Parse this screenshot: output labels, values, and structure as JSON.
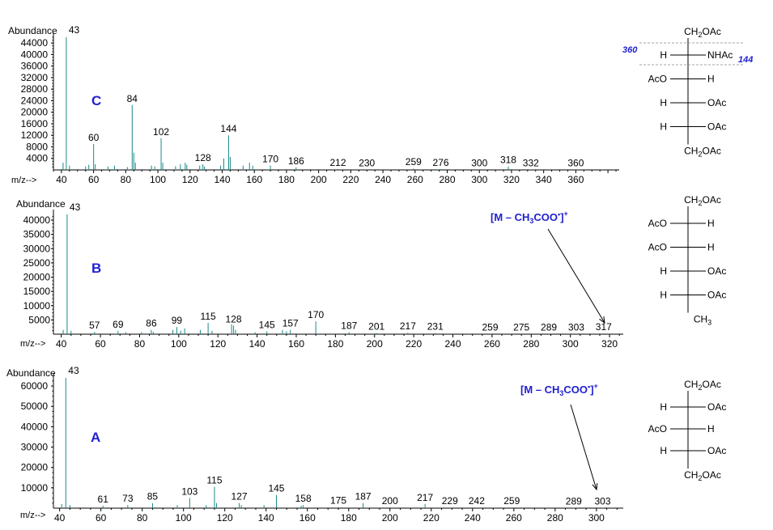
{
  "chart_data": [
    {
      "type": "bar",
      "panel_label": "C",
      "ylabel": "Abundance",
      "xlabel": "m/z-->",
      "xlim": [
        35,
        387
      ],
      "ylim": [
        0,
        46000
      ],
      "xticks": [
        40,
        60,
        80,
        100,
        120,
        140,
        160,
        180,
        200,
        220,
        240,
        260,
        280,
        300,
        320,
        340,
        360
      ],
      "yticks": [
        4000,
        8000,
        12000,
        16000,
        20000,
        24000,
        28000,
        32000,
        36000,
        40000,
        44000
      ],
      "peaks": [
        {
          "mz": 41,
          "val": 2500
        },
        {
          "mz": 43,
          "val": 46000
        },
        {
          "mz": 45,
          "val": 1500
        },
        {
          "mz": 55,
          "val": 1200
        },
        {
          "mz": 57,
          "val": 1800
        },
        {
          "mz": 60,
          "val": 9000,
          "label": "60"
        },
        {
          "mz": 61,
          "val": 2000
        },
        {
          "mz": 69,
          "val": 1200
        },
        {
          "mz": 73,
          "val": 1500
        },
        {
          "mz": 81,
          "val": 1000
        },
        {
          "mz": 84,
          "val": 22500,
          "label": "84"
        },
        {
          "mz": 85,
          "val": 6000
        },
        {
          "mz": 86,
          "val": 2500
        },
        {
          "mz": 96,
          "val": 1500
        },
        {
          "mz": 98,
          "val": 1200
        },
        {
          "mz": 102,
          "val": 11000,
          "label": "102"
        },
        {
          "mz": 103,
          "val": 2500
        },
        {
          "mz": 111,
          "val": 1300
        },
        {
          "mz": 114,
          "val": 2000
        },
        {
          "mz": 117,
          "val": 2500
        },
        {
          "mz": 118,
          "val": 1800
        },
        {
          "mz": 126,
          "val": 1500
        },
        {
          "mz": 128,
          "val": 2000,
          "label": "128"
        },
        {
          "mz": 129,
          "val": 1200
        },
        {
          "mz": 139,
          "val": 1500
        },
        {
          "mz": 141,
          "val": 4000
        },
        {
          "mz": 144,
          "val": 12000,
          "label": "144"
        },
        {
          "mz": 145,
          "val": 4500
        },
        {
          "mz": 153,
          "val": 1500
        },
        {
          "mz": 157,
          "val": 2500
        },
        {
          "mz": 159,
          "val": 1500
        },
        {
          "mz": 170,
          "val": 1500,
          "label": "170"
        },
        {
          "mz": 186,
          "val": 900,
          "label": "186"
        },
        {
          "mz": 212,
          "val": 300,
          "label": "212"
        },
        {
          "mz": 230,
          "val": 200,
          "label": "230"
        },
        {
          "mz": 259,
          "val": 500,
          "label": "259"
        },
        {
          "mz": 276,
          "val": 300,
          "label": "276"
        },
        {
          "mz": 300,
          "val": 200,
          "label": "300"
        },
        {
          "mz": 318,
          "val": 1200,
          "label": "318"
        },
        {
          "mz": 332,
          "val": 200,
          "label": "332"
        },
        {
          "mz": 360,
          "val": 200,
          "label": "360"
        }
      ],
      "top_label": "43"
    },
    {
      "type": "bar",
      "panel_label": "B",
      "ylabel": "Abundance",
      "xlabel": "m/z-->",
      "xlim": [
        36,
        327
      ],
      "ylim": [
        0,
        42000
      ],
      "xticks": [
        40,
        60,
        80,
        100,
        120,
        140,
        160,
        180,
        200,
        220,
        240,
        260,
        280,
        300,
        320
      ],
      "yticks": [
        5000,
        10000,
        15000,
        20000,
        25000,
        30000,
        35000,
        40000
      ],
      "peaks": [
        {
          "mz": 41,
          "val": 1500
        },
        {
          "mz": 43,
          "val": 42000
        },
        {
          "mz": 45,
          "val": 1200
        },
        {
          "mz": 57,
          "val": 800,
          "label": "57"
        },
        {
          "mz": 69,
          "val": 1200,
          "label": "69"
        },
        {
          "mz": 73,
          "val": 700
        },
        {
          "mz": 81,
          "val": 700
        },
        {
          "mz": 86,
          "val": 1500,
          "label": "86"
        },
        {
          "mz": 87,
          "val": 800
        },
        {
          "mz": 97,
          "val": 1500
        },
        {
          "mz": 99,
          "val": 2500,
          "label": "99"
        },
        {
          "mz": 101,
          "val": 1200
        },
        {
          "mz": 103,
          "val": 2000
        },
        {
          "mz": 111,
          "val": 1500
        },
        {
          "mz": 115,
          "val": 4000,
          "label": "115"
        },
        {
          "mz": 117,
          "val": 1200
        },
        {
          "mz": 127,
          "val": 3500
        },
        {
          "mz": 128,
          "val": 3000,
          "label": "128"
        },
        {
          "mz": 129,
          "val": 1500
        },
        {
          "mz": 139,
          "val": 700
        },
        {
          "mz": 145,
          "val": 1000,
          "label": "145"
        },
        {
          "mz": 153,
          "val": 1500
        },
        {
          "mz": 155,
          "val": 1000
        },
        {
          "mz": 157,
          "val": 1500,
          "label": "157"
        },
        {
          "mz": 170,
          "val": 4500,
          "label": "170"
        },
        {
          "mz": 187,
          "val": 700,
          "label": "187"
        },
        {
          "mz": 201,
          "val": 400,
          "label": "201"
        },
        {
          "mz": 217,
          "val": 500,
          "label": "217"
        },
        {
          "mz": 231,
          "val": 400,
          "label": "231"
        },
        {
          "mz": 259,
          "val": 200,
          "label": "259"
        },
        {
          "mz": 275,
          "val": 200,
          "label": "275"
        },
        {
          "mz": 289,
          "val": 200,
          "label": "289"
        },
        {
          "mz": 303,
          "val": 200,
          "label": "303"
        },
        {
          "mz": 317,
          "val": 300,
          "label": "317"
        }
      ],
      "top_label": "43",
      "annotation": {
        "pre": "[M – CH",
        "sub": "3",
        "mid": "COO",
        "sup_dot": "•",
        "post": "]",
        "sup": "+"
      }
    },
    {
      "type": "bar",
      "panel_label": "A",
      "ylabel": "Abundance",
      "xlabel": "m/z-->",
      "xlim": [
        37,
        313
      ],
      "ylim": [
        0,
        64000
      ],
      "xticks": [
        40,
        60,
        80,
        100,
        120,
        140,
        160,
        180,
        200,
        220,
        240,
        260,
        280,
        300
      ],
      "yticks": [
        10000,
        20000,
        30000,
        40000,
        50000,
        60000
      ],
      "peaks": [
        {
          "mz": 41,
          "val": 2000
        },
        {
          "mz": 43,
          "val": 64000
        },
        {
          "mz": 45,
          "val": 1500
        },
        {
          "mz": 61,
          "val": 1200,
          "label": "61"
        },
        {
          "mz": 73,
          "val": 1500,
          "label": "73"
        },
        {
          "mz": 85,
          "val": 2500,
          "label": "85"
        },
        {
          "mz": 97,
          "val": 1500
        },
        {
          "mz": 103,
          "val": 5000,
          "label": "103"
        },
        {
          "mz": 111,
          "val": 1500
        },
        {
          "mz": 115,
          "val": 10500,
          "label": "115"
        },
        {
          "mz": 116,
          "val": 2500
        },
        {
          "mz": 127,
          "val": 2500,
          "label": "127"
        },
        {
          "mz": 128,
          "val": 1500
        },
        {
          "mz": 139,
          "val": 1500
        },
        {
          "mz": 145,
          "val": 6500,
          "label": "145"
        },
        {
          "mz": 157,
          "val": 1200
        },
        {
          "mz": 158,
          "val": 1500,
          "label": "158"
        },
        {
          "mz": 175,
          "val": 500,
          "label": "175"
        },
        {
          "mz": 187,
          "val": 2500,
          "label": "187"
        },
        {
          "mz": 200,
          "val": 400,
          "label": "200"
        },
        {
          "mz": 217,
          "val": 2000,
          "label": "217"
        },
        {
          "mz": 229,
          "val": 300,
          "label": "229"
        },
        {
          "mz": 242,
          "val": 300,
          "label": "242"
        },
        {
          "mz": 259,
          "val": 300,
          "label": "259"
        },
        {
          "mz": 289,
          "val": 200,
          "label": "289"
        },
        {
          "mz": 303,
          "val": 200,
          "label": "303"
        }
      ],
      "top_label": "43",
      "annotation": {
        "pre": "[M – CH",
        "sub": "3",
        "mid": "COO",
        "sup_dot": "•",
        "post": "]",
        "sup": "+"
      }
    }
  ],
  "structures": {
    "C": {
      "top": "CH2OAc",
      "rows": [
        [
          "H",
          "NHAc"
        ],
        [
          "AcO",
          "H"
        ],
        [
          "H",
          "OAc"
        ],
        [
          "H",
          "OAc"
        ]
      ],
      "bottom": "CH2OAc",
      "frag_left": "360",
      "frag_right": "144"
    },
    "B": {
      "top": "CH2OAc",
      "rows": [
        [
          "AcO",
          "H"
        ],
        [
          "AcO",
          "H"
        ],
        [
          "H",
          "OAc"
        ],
        [
          "H",
          "OAc"
        ]
      ],
      "bottom": "CH3"
    },
    "A": {
      "top": "CH2OAc",
      "rows": [
        [
          "H",
          "OAc"
        ],
        [
          "AcO",
          "H"
        ],
        [
          "H",
          "OAc"
        ]
      ],
      "bottom": "CH2OAc"
    }
  },
  "colors": {
    "peaks": "#1a8a8a",
    "annotation": "#1f1fd0"
  }
}
